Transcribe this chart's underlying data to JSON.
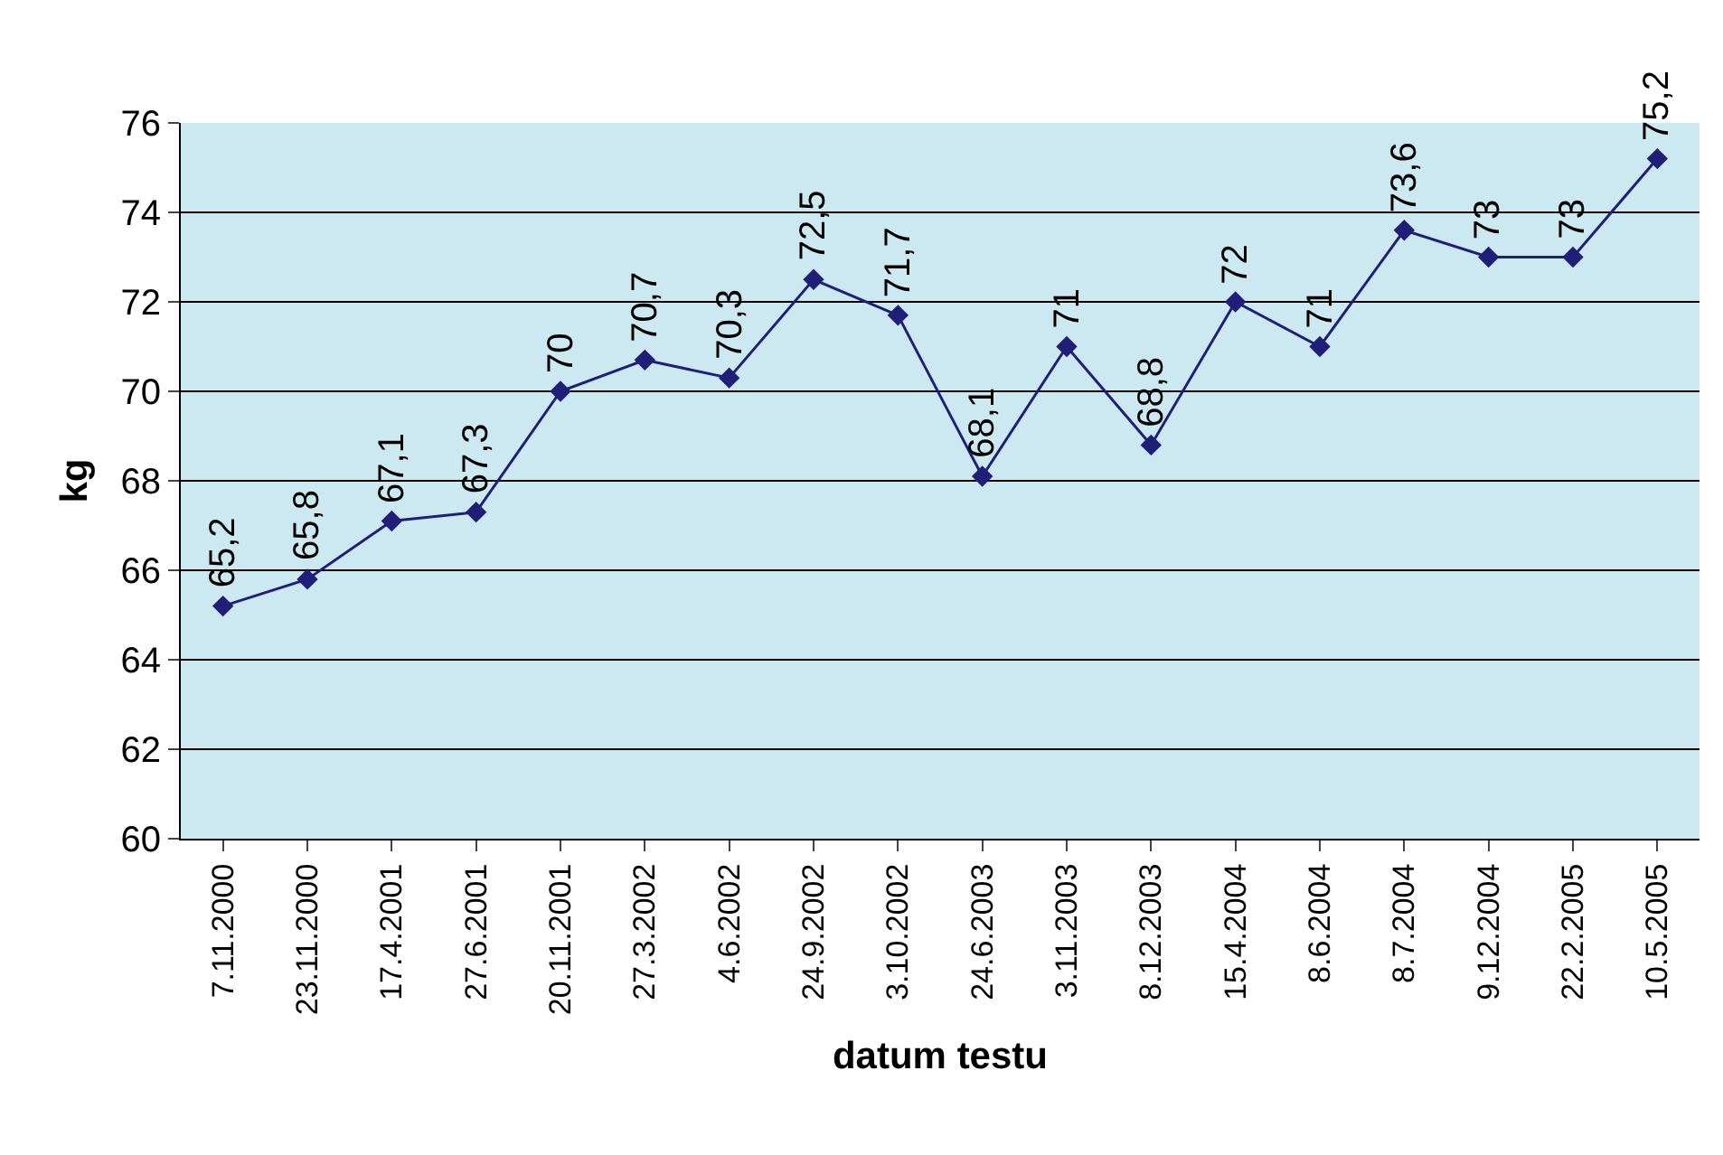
{
  "chart_data": {
    "type": "line",
    "xlabel": "datum testu",
    "ylabel": "kg",
    "categories": [
      "7.11.2000",
      "23.11.2000",
      "17.4.2001",
      "27.6.2001",
      "20.11.2001",
      "27.3.2002",
      "4.6.2002",
      "24.9.2002",
      "3.10.2002",
      "24.6.2003",
      "3.11.2003",
      "8.12.2003",
      "15.4.2004",
      "8.6.2004",
      "8.7.2004",
      "9.12.2004",
      "22.2.2005",
      "10.5.2005"
    ],
    "series": [
      {
        "color": "#1f1f78",
        "values": [
          65.2,
          65.8,
          67.1,
          67.3,
          70,
          70.7,
          70.3,
          72.5,
          71.7,
          68.1,
          71,
          68.8,
          72,
          71,
          73.6,
          73,
          73,
          75.2
        ],
        "value_labels": [
          "65,2",
          "65,8",
          "67,1",
          "67,3",
          "70",
          "70,7",
          "70,3",
          "72,5",
          "71,7",
          "68,1",
          "71",
          "68,8",
          "72",
          "71",
          "73,6",
          "73",
          "73",
          "75,2"
        ]
      }
    ],
    "ylim": [
      60,
      76
    ],
    "yticks": [
      60,
      62,
      64,
      66,
      68,
      70,
      72,
      74,
      76
    ],
    "grid": "y",
    "legend": false,
    "marker": "diamond",
    "line_style": "solid"
  }
}
